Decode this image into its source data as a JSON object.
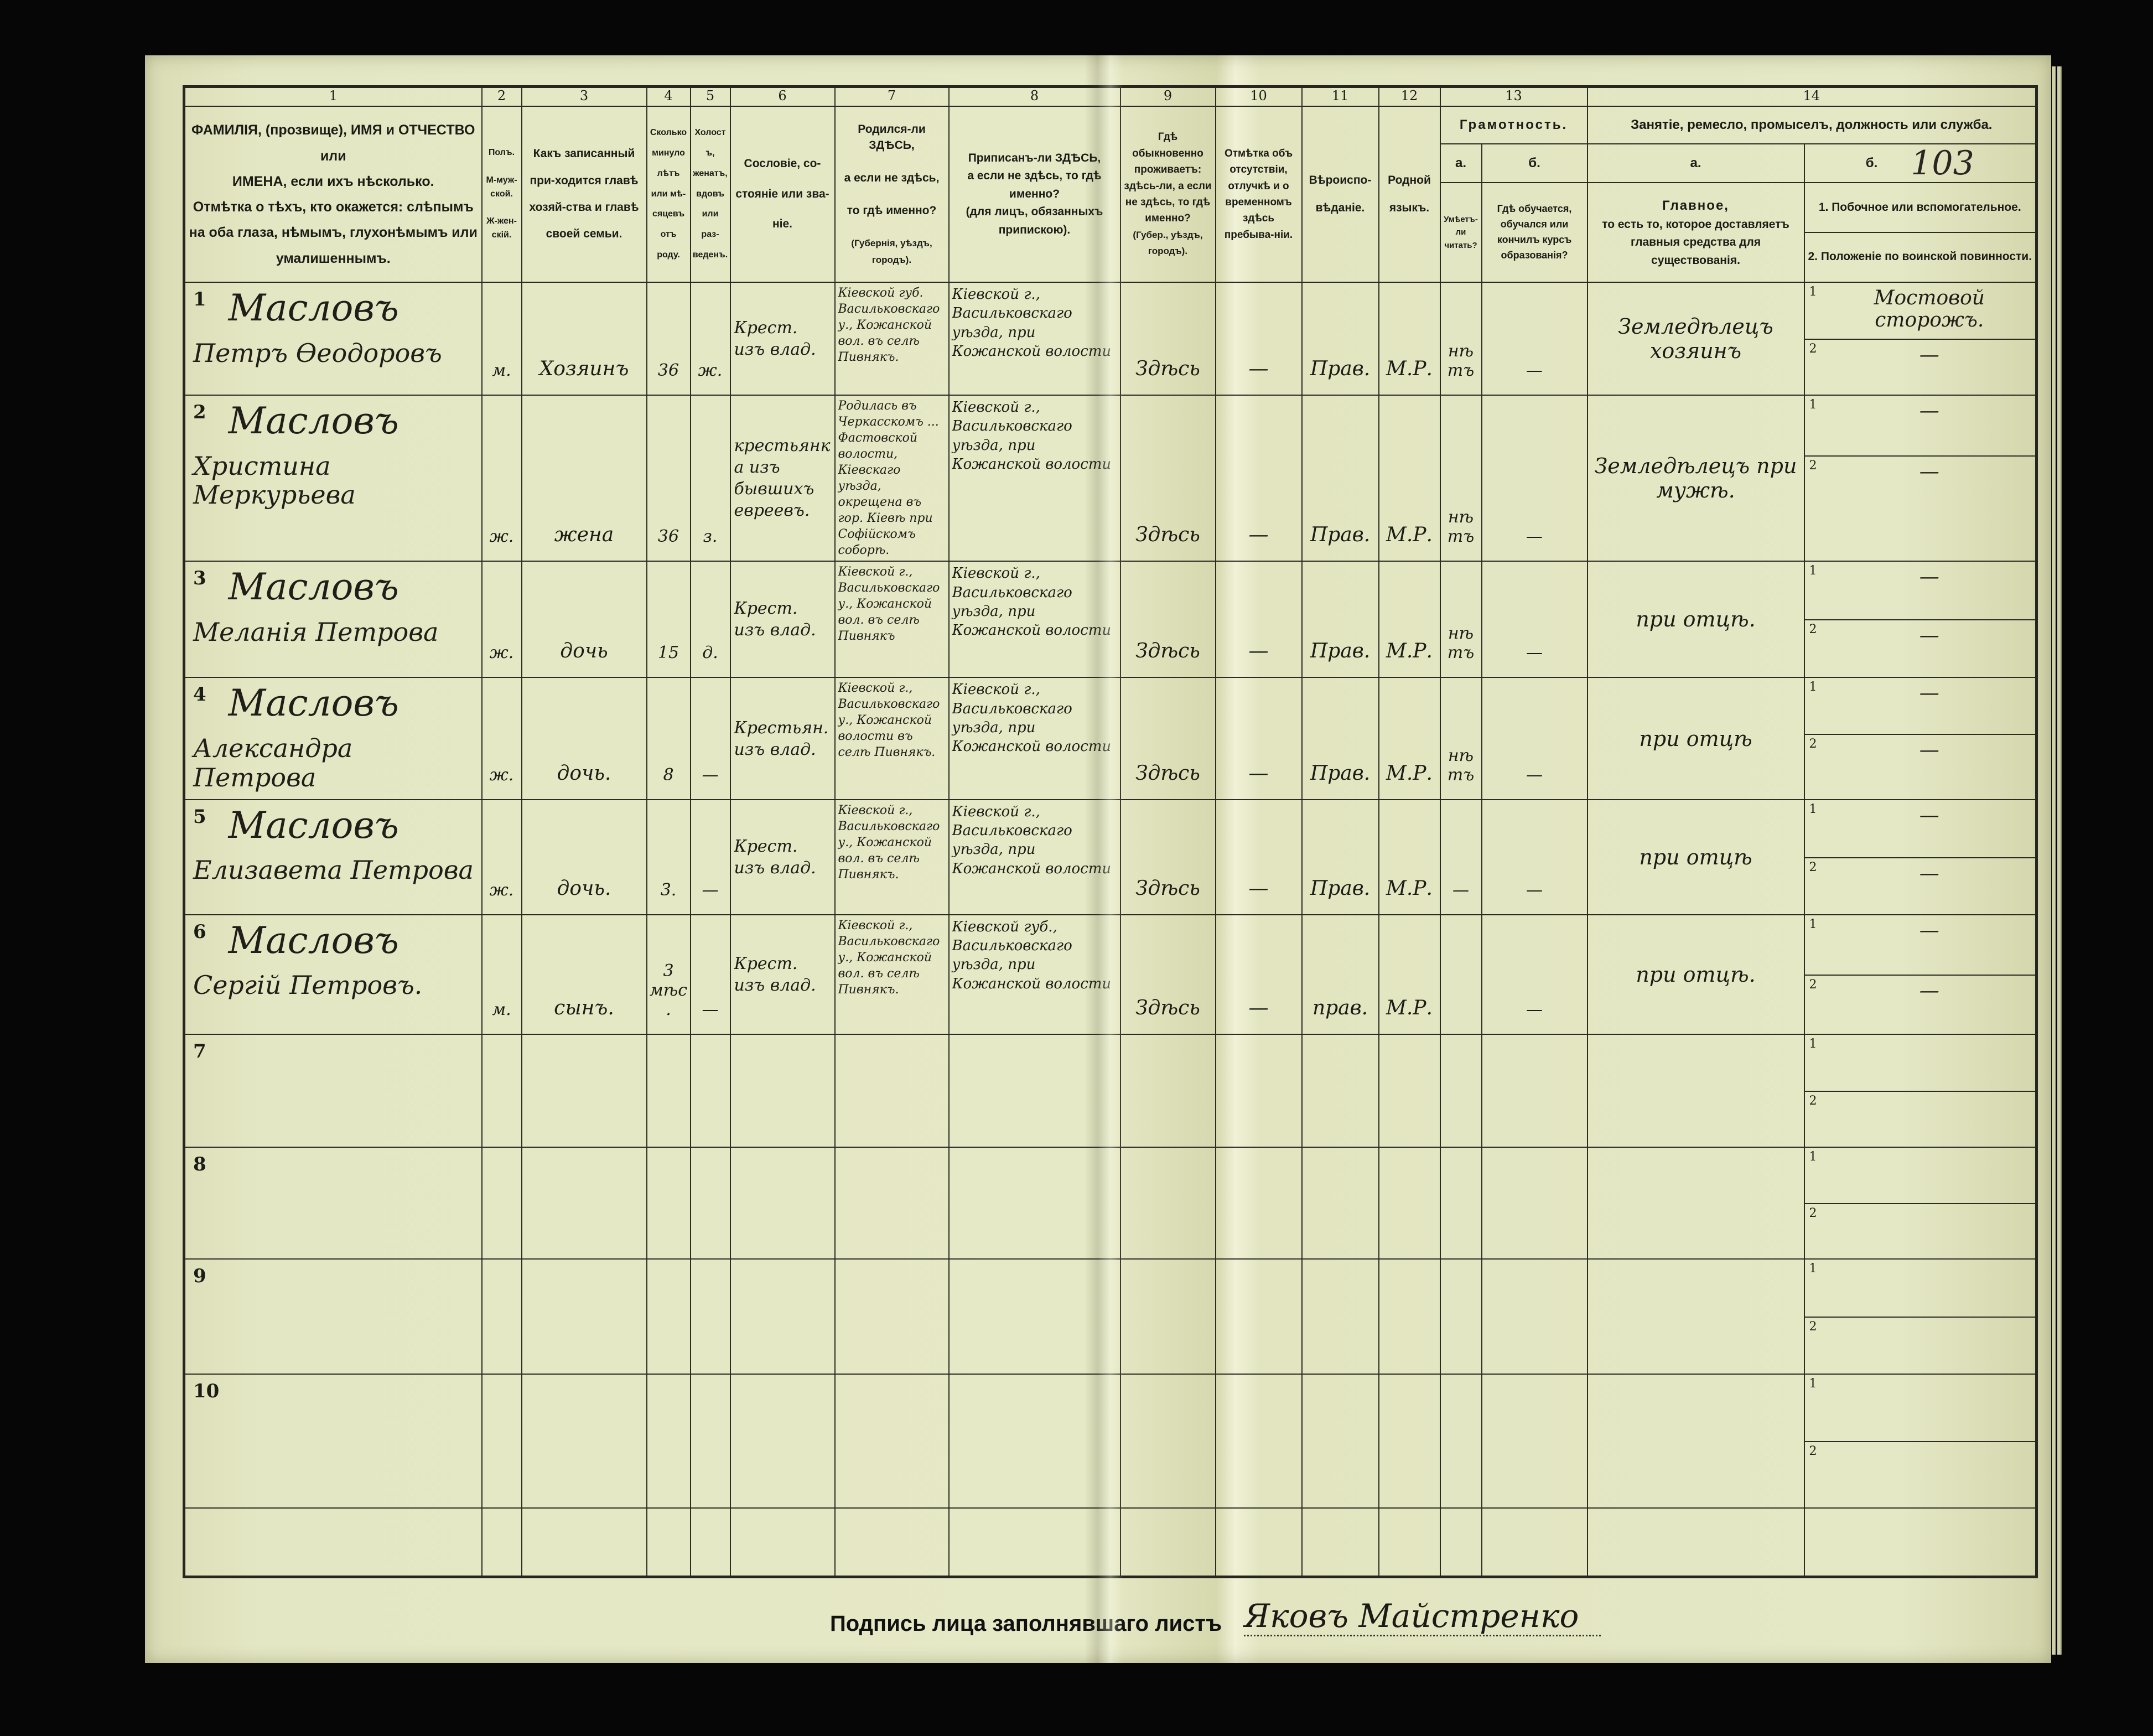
{
  "form": {
    "page_mark": "103",
    "column_numbers": [
      "1",
      "2",
      "3",
      "4",
      "5",
      "6",
      "7",
      "8",
      "9",
      "10",
      "11",
      "12",
      "13",
      "14"
    ],
    "headers": {
      "c1": [
        "ФАМИЛІЯ, (прозвище), ИМЯ и ОТЧЕСТВО или",
        "ИМЕНА, если ихъ нѣсколько.",
        "Отмѣтка о тѣхъ, кто окажется: слѣпымъ",
        "на оба глаза, нѣмымъ, глухонѣмымъ или",
        "умалишеннымъ."
      ],
      "c2": [
        "Полъ.",
        "М-муж-ской.",
        "Ж-жен-скій."
      ],
      "c3": "Какъ записанный при-ходится главѣ хозяй-ства и главѣ своей семьи.",
      "c4": "Сколько минуло лѣтъ или мѣ-сяцевъ отъ роду.",
      "c5": "Холостъ, женатъ, вдовъ или раз-веденъ.",
      "c6": "Сословіе, со-стояніе или зва-ніе.",
      "c7": [
        "Родился-ли ЗДѢСЬ,",
        "а если не здѣсь,",
        "то гдѣ именно?",
        "(Губернія, уѣздъ, городъ)."
      ],
      "c8": [
        "Приписанъ-ли ЗДѢСЬ,",
        "а если не здѣсь, то гдѣ именно?",
        "(для лицъ, обязанныхъ припискою)."
      ],
      "c9": [
        "Гдѣ обыкновенно проживаетъ:",
        "здѣсь-ли, а если не здѣсь, то гдѣ именно?",
        "(Губер., уѣздъ, городъ)."
      ],
      "c10": "Отмѣтка объ отсутствіи, отлучкѣ и о временномъ здѣсь пребыва-ніи.",
      "c11": "Вѣроиспо-вѣданіе.",
      "c12": "Родной языкъ.",
      "c13": "Грамотность.",
      "c13a_label": "а.",
      "c13b_label": "б.",
      "c13a": "Умѣетъ-ли читать?",
      "c13b": "Гдѣ обучается, обучался или кончилъ курсъ образованія?",
      "c14": "Занятіе, ремесло, промыселъ, должность или служба.",
      "c14a_label": "а.",
      "c14b_label": "б.",
      "c14a": [
        "Главное,",
        "то есть то, которое доставляетъ",
        "главныя средства для существованія."
      ],
      "c14b_1": "1. Побочное или вспомогательное.",
      "c14b_2": "2. Положеніе по воинской повинности."
    },
    "sub_numbers": [
      "1",
      "2"
    ],
    "rows": [
      {
        "num": "1",
        "surname": "Масловъ",
        "given": "Петръ Өеодоровъ",
        "sex": "м.",
        "relation": "Хозяинъ",
        "age": "36",
        "marital": "ж.",
        "estate": "Крест. изъ влад.",
        "birthplace": "Кіевской губ. Васильковскаго у., Кожанской вол. въ селѣ Пивнякъ.",
        "registered": "Кіевской г., Васильковскаго уѣзда, при Кожанской волости",
        "residence": "Здѣсь",
        "absence": "—",
        "religion": "Прав.",
        "language": "М.Р.",
        "literacy": "нѣтъ",
        "education": "—",
        "occupation": "Земледѣлецъ хозяинъ",
        "secondary": "Мостовой сторожъ.",
        "military": "—"
      },
      {
        "num": "2",
        "surname": "Масловъ",
        "given": "Христина Меркурьева",
        "sex": "ж.",
        "relation": "жена",
        "age": "36",
        "marital": "з.",
        "estate": "крестьянка изъ бывшихъ евреевъ.",
        "birthplace": "Родилась въ Черкасскомъ ... Фастовской волости, Кіевскаго уѣзда, окрещена въ гор. Кіевѣ при Софійскомъ соборѣ.",
        "registered": "Кіевской г., Васильковскаго уѣзда, при Кожанской волости",
        "residence": "Здѣсь",
        "absence": "—",
        "religion": "Прав.",
        "language": "М.Р.",
        "literacy": "нѣтъ",
        "education": "—",
        "occupation": "Земледѣлецъ при мужѣ.",
        "secondary": "—",
        "military": "—"
      },
      {
        "num": "3",
        "surname": "Масловъ",
        "given": "Меланія Петрова",
        "sex": "ж.",
        "relation": "дочь",
        "age": "15",
        "marital": "д.",
        "estate": "Крест. изъ влад.",
        "birthplace": "Кіевской г., Васильковскаго у., Кожанской вол. въ селѣ Пивнякъ",
        "registered": "Кіевской г., Васильковскаго уѣзда, при Кожанской волости",
        "residence": "Здѣсь",
        "absence": "—",
        "religion": "Прав.",
        "language": "М.Р.",
        "literacy": "нѣтъ",
        "education": "—",
        "occupation": "при отцѣ.",
        "secondary": "—",
        "military": "—"
      },
      {
        "num": "4",
        "surname": "Масловъ",
        "given": "Александра Петрова",
        "sex": "ж.",
        "relation": "дочь.",
        "age": "8",
        "marital": "—",
        "estate": "Крестьян. изъ влад.",
        "birthplace": "Кіевской г., Васильковскаго у., Кожанской волости въ селѣ Пивнякъ.",
        "registered": "Кіевской г., Васильковскаго уѣзда, при Кожанской волости",
        "residence": "Здѣсь",
        "absence": "—",
        "religion": "Прав.",
        "language": "М.Р.",
        "literacy": "нѣтъ",
        "education": "—",
        "occupation": "при отцѣ",
        "secondary": "—",
        "military": "—"
      },
      {
        "num": "5",
        "surname": "Масловъ",
        "given": "Елизавета Петрова",
        "sex": "ж.",
        "relation": "дочь.",
        "age": "3.",
        "marital": "—",
        "estate": "Крест. изъ влад.",
        "birthplace": "Кіевской г., Васильковскаго у., Кожанской вол. въ селѣ Пивнякъ.",
        "registered": "Кіевской г., Васильковскаго уѣзда, при Кожанской волости",
        "residence": "Здѣсь",
        "absence": "—",
        "religion": "Прав.",
        "language": "М.Р.",
        "literacy": "—",
        "education": "—",
        "occupation": "при отцѣ",
        "secondary": "—",
        "military": "—"
      },
      {
        "num": "6",
        "surname": "Масловъ",
        "given": "Сергій Петровъ.",
        "sex": "м.",
        "relation": "сынъ.",
        "age": "3 мѣс.",
        "marital": "—",
        "estate": "Крест. изъ влад.",
        "birthplace": "Кіевской г., Васильковскаго у., Кожанской вол. въ селѣ Пивнякъ.",
        "registered": "Кіевской губ., Васильковскаго уѣзда, при Кожанской волости",
        "residence": "Здѣсь",
        "absence": "—",
        "religion": "прав.",
        "language": "М.Р.",
        "literacy": "",
        "education": "—",
        "occupation": "при отцѣ.",
        "secondary": "—",
        "military": "—"
      }
    ],
    "empty_row_numbers": [
      "7",
      "8",
      "9",
      "10"
    ],
    "signature_label": "Подпись лица заполнявшаго листъ",
    "signature": "Яковъ Майстренко"
  },
  "colors": {
    "paper": "#e4e7c3",
    "ink": "#1c1c16",
    "background": "#060606"
  }
}
